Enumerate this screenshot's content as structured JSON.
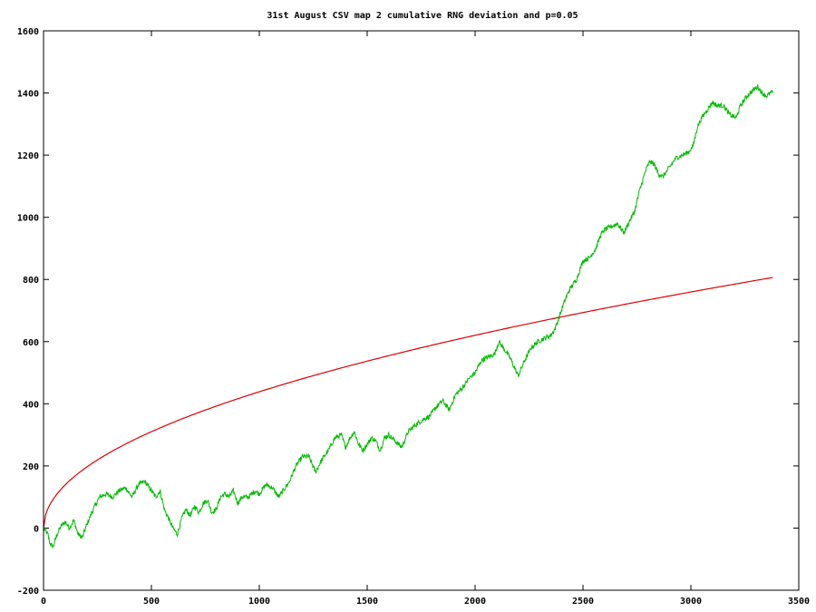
{
  "chart_data": {
    "type": "line",
    "title": "31st August CSV map 2 cumulative RNG deviation and p=0.05",
    "xlabel": "",
    "ylabel": "",
    "xlim": [
      0,
      3500
    ],
    "ylim": [
      -200,
      1600
    ],
    "x_ticks": [
      0,
      500,
      1000,
      1500,
      2000,
      2500,
      3000,
      3500
    ],
    "y_ticks": [
      -200,
      0,
      200,
      400,
      600,
      800,
      1000,
      1200,
      1400,
      1600
    ],
    "grid": false,
    "legend": "none",
    "series": [
      {
        "color": "#00bb00",
        "x": [
          0,
          20,
          30,
          45,
          60,
          80,
          100,
          120,
          140,
          160,
          180,
          200,
          230,
          260,
          290,
          320,
          350,
          380,
          410,
          440,
          470,
          500,
          520,
          540,
          560,
          580,
          600,
          620,
          640,
          660,
          680,
          700,
          720,
          740,
          760,
          780,
          800,
          820,
          840,
          860,
          880,
          900,
          920,
          950,
          980,
          1000,
          1030,
          1060,
          1090,
          1110,
          1140,
          1170,
          1200,
          1230,
          1260,
          1290,
          1320,
          1350,
          1380,
          1400,
          1420,
          1440,
          1460,
          1480,
          1500,
          1520,
          1540,
          1560,
          1580,
          1600,
          1630,
          1660,
          1690,
          1720,
          1760,
          1790,
          1820,
          1850,
          1880,
          1910,
          1940,
          1970,
          2000,
          2030,
          2060,
          2090,
          2110,
          2130,
          2160,
          2180,
          2200,
          2230,
          2260,
          2290,
          2320,
          2350,
          2370,
          2390,
          2420,
          2440,
          2470,
          2500,
          2530,
          2560,
          2580,
          2600,
          2630,
          2660,
          2690,
          2710,
          2740,
          2760,
          2790,
          2810,
          2830,
          2850,
          2870,
          2900,
          2930,
          2960,
          2990,
          3010,
          3030,
          3050,
          3080,
          3100,
          3120,
          3150,
          3180,
          3210,
          3230,
          3260,
          3290,
          3310,
          3330,
          3350,
          3370,
          3380
        ],
        "y": [
          0,
          -20,
          -50,
          -60,
          -25,
          5,
          20,
          0,
          25,
          -20,
          -30,
          10,
          60,
          100,
          110,
          100,
          120,
          130,
          100,
          140,
          150,
          120,
          100,
          120,
          60,
          30,
          0,
          -20,
          30,
          60,
          40,
          70,
          50,
          80,
          90,
          50,
          60,
          100,
          110,
          100,
          120,
          80,
          100,
          100,
          120,
          110,
          140,
          130,
          100,
          120,
          150,
          200,
          230,
          230,
          180,
          220,
          250,
          290,
          300,
          260,
          290,
          310,
          270,
          250,
          270,
          290,
          280,
          250,
          290,
          300,
          280,
          260,
          310,
          330,
          350,
          360,
          390,
          410,
          380,
          430,
          450,
          480,
          500,
          540,
          550,
          560,
          600,
          580,
          550,
          520,
          490,
          540,
          580,
          600,
          610,
          620,
          640,
          680,
          740,
          770,
          800,
          860,
          870,
          900,
          940,
          960,
          970,
          980,
          950,
          980,
          1020,
          1080,
          1150,
          1180,
          1170,
          1140,
          1130,
          1160,
          1190,
          1200,
          1210,
          1230,
          1290,
          1320,
          1350,
          1370,
          1360,
          1360,
          1330,
          1320,
          1360,
          1390,
          1410,
          1420,
          1400,
          1390,
          1400,
          1405
        ]
      },
      {
        "color": "#dd0000",
        "function": "sqrt",
        "scale": 13.87,
        "x_end": 3380
      }
    ]
  }
}
